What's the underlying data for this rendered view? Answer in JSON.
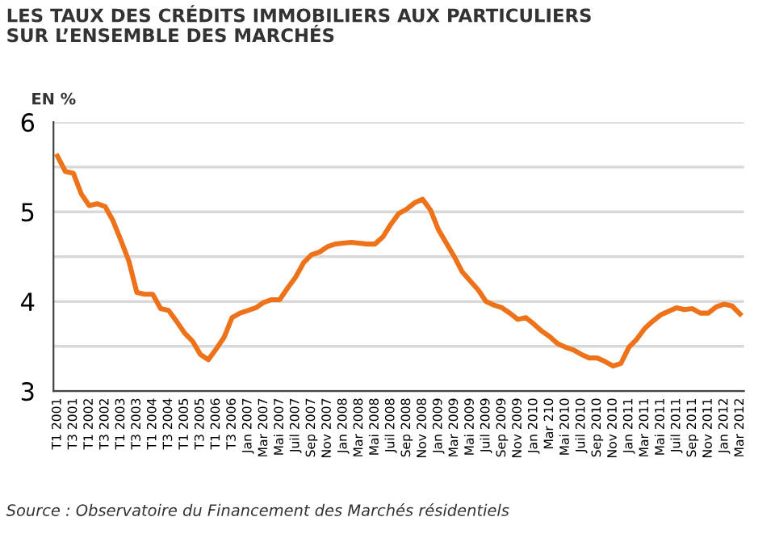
{
  "chart_data": {
    "type": "line",
    "title": "LES TAUX DES CRÉDITS IMMOBILIERS AUX PARTICULIERS\nSUR L’ENSEMBLE DES MARCHÉS",
    "ylabel": "EN %",
    "categories": [
      "T1 2001",
      null,
      "T3 2001",
      null,
      "T1 2002",
      null,
      "T3 2002",
      null,
      "T1 2003",
      null,
      "T3 2003",
      null,
      "T1 2004",
      null,
      "T3 2004",
      null,
      "T1 2005",
      null,
      "T3 2005",
      null,
      "T1 2006",
      null,
      "T3 2006",
      null,
      "Jan 2007",
      null,
      "Mar 2007",
      null,
      "Mai 2007",
      null,
      "Juil 2007",
      null,
      "Sep 2007",
      null,
      "Nov 2007",
      null,
      "Jan 2008",
      null,
      "Mar 2008",
      null,
      "Mai 2008",
      null,
      "Juil 2008",
      null,
      "Sep 2008",
      null,
      "Nov 2008",
      null,
      "Jan 2009",
      null,
      "Mar 2009",
      null,
      "Mai 2009",
      null,
      "Juil 2009",
      null,
      "Sep 2009",
      null,
      "Nov 2009",
      null,
      "Jan 2010",
      null,
      "Mar 210",
      null,
      "Mai 2010",
      null,
      "Juil 2010",
      null,
      "Sep 2010",
      null,
      "Nov 2010",
      null,
      "Jan 2011",
      null,
      "Mar 2011",
      null,
      "Mai 2011",
      null,
      "Juil 2011",
      null,
      "Sep 2011",
      null,
      "Nov 2011",
      null,
      "Jan 2012",
      null,
      "Mar 2012"
    ],
    "series": [
      {
        "color": "#ee7219",
        "values": [
          5.62,
          5.45,
          5.43,
          5.2,
          5.07,
          5.09,
          5.06,
          4.9,
          4.68,
          4.45,
          4.1,
          4.08,
          4.08,
          3.92,
          3.9,
          3.78,
          3.65,
          3.56,
          3.41,
          3.35,
          3.47,
          3.6,
          3.82,
          3.87,
          3.9,
          3.93,
          3.99,
          4.02,
          4.02,
          4.15,
          4.27,
          4.43,
          4.52,
          4.55,
          4.61,
          4.64,
          4.65,
          4.66,
          4.65,
          4.64,
          4.64,
          4.72,
          4.86,
          4.98,
          5.03,
          5.1,
          5.14,
          5.02,
          4.8,
          4.65,
          4.5,
          4.33,
          4.23,
          4.13,
          4.0,
          3.96,
          3.93,
          3.87,
          3.8,
          3.82,
          3.75,
          3.67,
          3.61,
          3.53,
          3.49,
          3.46,
          3.41,
          3.37,
          3.37,
          3.33,
          3.28,
          3.31,
          3.49,
          3.58,
          3.7,
          3.78,
          3.85,
          3.89,
          3.93,
          3.91,
          3.92,
          3.87,
          3.87,
          3.94,
          3.97,
          3.95,
          3.86
        ]
      }
    ],
    "ylim": [
      3,
      6
    ],
    "yticks": [
      3,
      {
        "value": 3.5,
        "label": null
      },
      4,
      {
        "value": 4.5,
        "label": null
      },
      5,
      {
        "value": 5.5,
        "label": null
      },
      6
    ],
    "grid": "y",
    "legend": false,
    "marker": "none",
    "line_style": "solid",
    "annotations": [
      "Source : Observatoire du Financement des Marchés résidentiels"
    ]
  }
}
